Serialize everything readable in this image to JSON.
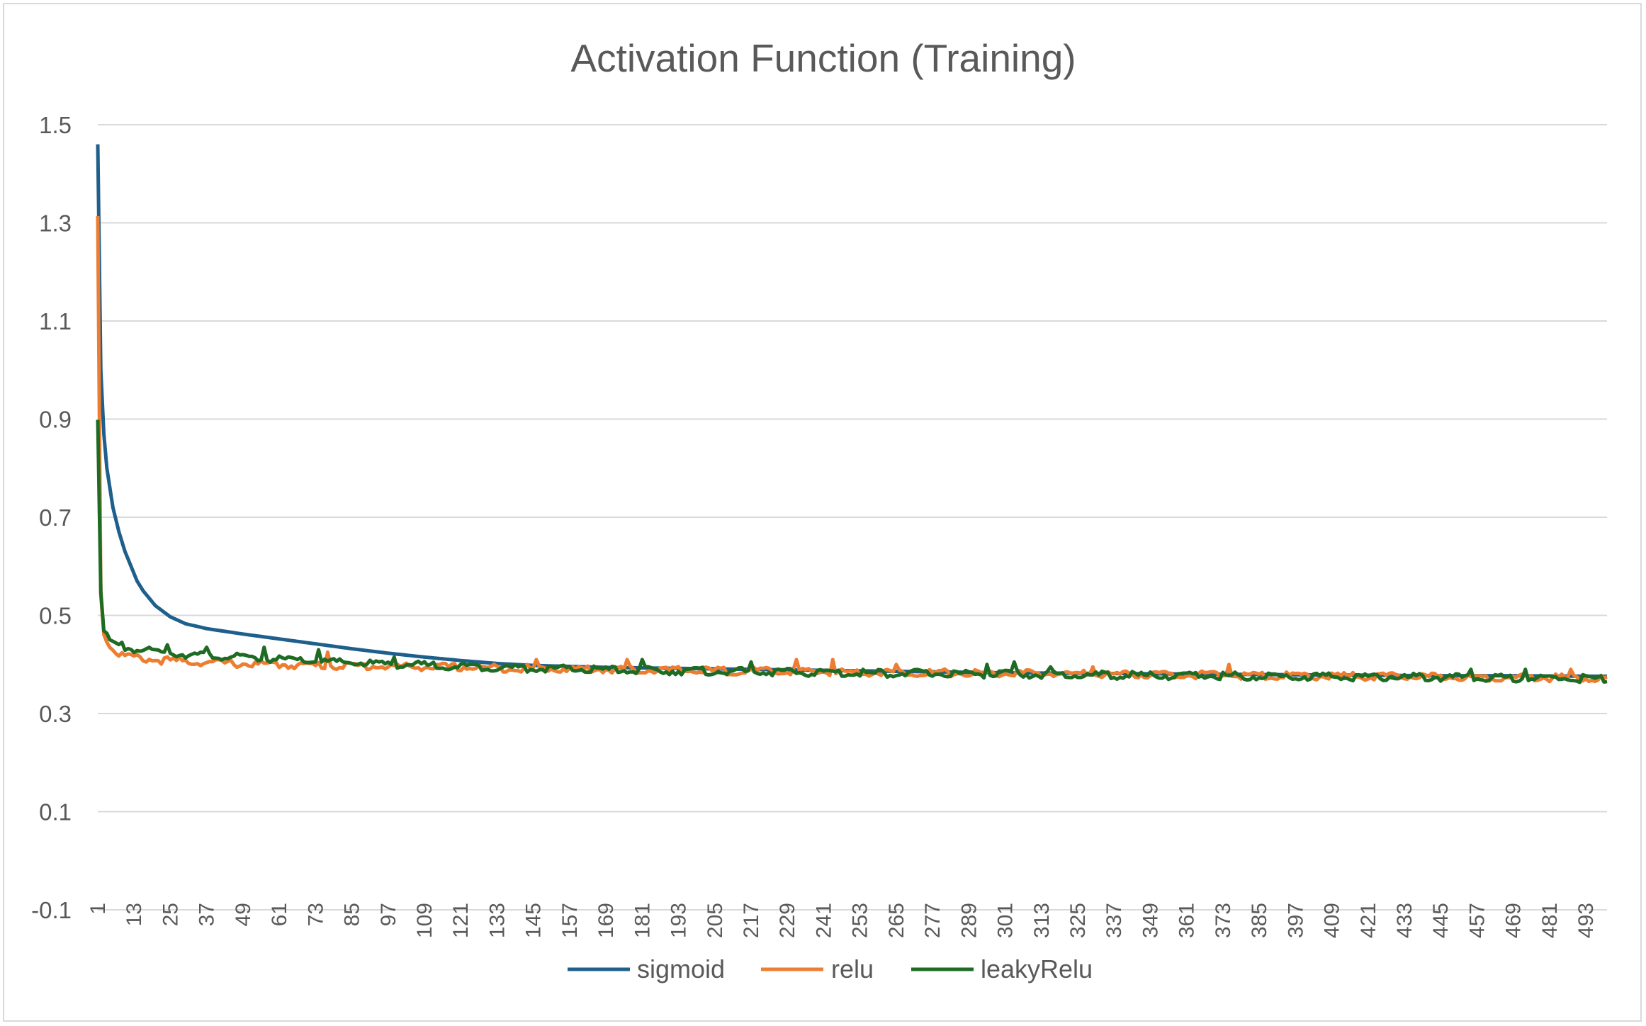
{
  "chart_data": {
    "type": "line",
    "title": "Activation Function (Training)",
    "xlabel": "",
    "ylabel": "",
    "ylim": [
      -0.1,
      1.5
    ],
    "y_ticks": [
      "1.5",
      "1.3",
      "1.1",
      "0.9",
      "0.7",
      "0.5",
      "0.3",
      "0.1",
      "-0.1"
    ],
    "y_tick_values": [
      1.5,
      1.3,
      1.1,
      0.9,
      0.7,
      0.5,
      0.3,
      0.1,
      -0.1
    ],
    "x_range": [
      1,
      500
    ],
    "x_tick_labels": [
      "1",
      "13",
      "25",
      "37",
      "49",
      "61",
      "73",
      "85",
      "97",
      "109",
      "121",
      "133",
      "145",
      "157",
      "169",
      "181",
      "193",
      "205",
      "217",
      "229",
      "241",
      "253",
      "265",
      "277",
      "289",
      "301",
      "313",
      "325",
      "337",
      "349",
      "361",
      "373",
      "385",
      "397",
      "409",
      "421",
      "433",
      "445",
      "457",
      "469",
      "481",
      "493"
    ],
    "grid": "horizontal",
    "legend_position": "bottom",
    "series": [
      {
        "name": "sigmoid",
        "color": "#1f5f8b",
        "points": [
          [
            1,
            1.46
          ],
          [
            2,
            1.0
          ],
          [
            3,
            0.87
          ],
          [
            4,
            0.8
          ],
          [
            5,
            0.76
          ],
          [
            6,
            0.72
          ],
          [
            8,
            0.67
          ],
          [
            10,
            0.63
          ],
          [
            12,
            0.6
          ],
          [
            14,
            0.57
          ],
          [
            16,
            0.55
          ],
          [
            18,
            0.535
          ],
          [
            20,
            0.52
          ],
          [
            25,
            0.497
          ],
          [
            30,
            0.483
          ],
          [
            37,
            0.473
          ],
          [
            49,
            0.462
          ],
          [
            61,
            0.452
          ],
          [
            73,
            0.442
          ],
          [
            85,
            0.432
          ],
          [
            97,
            0.423
          ],
          [
            109,
            0.415
          ],
          [
            121,
            0.408
          ],
          [
            133,
            0.402
          ],
          [
            145,
            0.398
          ],
          [
            157,
            0.396
          ],
          [
            169,
            0.394
          ],
          [
            181,
            0.393
          ],
          [
            193,
            0.392
          ],
          [
            205,
            0.391
          ],
          [
            229,
            0.389
          ],
          [
            253,
            0.387
          ],
          [
            277,
            0.385
          ],
          [
            301,
            0.383
          ],
          [
            325,
            0.382
          ],
          [
            349,
            0.381
          ],
          [
            373,
            0.38
          ],
          [
            397,
            0.379
          ],
          [
            421,
            0.378
          ],
          [
            445,
            0.377
          ],
          [
            469,
            0.377
          ],
          [
            493,
            0.376
          ],
          [
            500,
            0.376
          ]
        ]
      },
      {
        "name": "relu",
        "color": "#ed7d31",
        "points": [
          [
            1,
            1.32
          ],
          [
            2,
            0.55
          ],
          [
            3,
            0.47
          ],
          [
            5,
            0.44
          ],
          [
            8,
            0.425
          ],
          [
            13,
            0.418
          ],
          [
            20,
            0.413
          ],
          [
            30,
            0.41
          ],
          [
            49,
            0.405
          ],
          [
            73,
            0.402
          ],
          [
            97,
            0.4
          ],
          [
            121,
            0.398
          ],
          [
            145,
            0.396
          ],
          [
            169,
            0.394
          ],
          [
            193,
            0.392
          ],
          [
            217,
            0.39
          ],
          [
            241,
            0.389
          ],
          [
            265,
            0.388
          ],
          [
            289,
            0.386
          ],
          [
            313,
            0.385
          ],
          [
            337,
            0.384
          ],
          [
            361,
            0.383
          ],
          [
            385,
            0.381
          ],
          [
            409,
            0.38
          ],
          [
            433,
            0.379
          ],
          [
            457,
            0.378
          ],
          [
            481,
            0.377
          ],
          [
            500,
            0.376
          ]
        ],
        "spikes": [
          [
            77,
            0.425
          ],
          [
            146,
            0.41
          ],
          [
            176,
            0.41
          ],
          [
            232,
            0.41
          ],
          [
            244,
            0.41
          ],
          [
            265,
            0.4
          ],
          [
            330,
            0.395
          ],
          [
            375,
            0.4
          ],
          [
            488,
            0.39
          ]
        ]
      },
      {
        "name": "leakyRelu",
        "color": "#1e6b23",
        "points": [
          [
            1,
            0.91
          ],
          [
            2,
            0.55
          ],
          [
            3,
            0.47
          ],
          [
            5,
            0.45
          ],
          [
            8,
            0.44
          ],
          [
            13,
            0.435
          ],
          [
            20,
            0.43
          ],
          [
            30,
            0.425
          ],
          [
            49,
            0.418
          ],
          [
            73,
            0.41
          ],
          [
            97,
            0.405
          ],
          [
            121,
            0.4
          ],
          [
            145,
            0.396
          ],
          [
            169,
            0.393
          ],
          [
            193,
            0.391
          ],
          [
            217,
            0.389
          ],
          [
            241,
            0.387
          ],
          [
            265,
            0.386
          ],
          [
            289,
            0.385
          ],
          [
            313,
            0.383
          ],
          [
            337,
            0.382
          ],
          [
            361,
            0.381
          ],
          [
            385,
            0.38
          ],
          [
            409,
            0.379
          ],
          [
            433,
            0.378
          ],
          [
            457,
            0.377
          ],
          [
            481,
            0.376
          ],
          [
            500,
            0.375
          ]
        ],
        "spikes": [
          [
            9,
            0.445
          ],
          [
            24,
            0.44
          ],
          [
            37,
            0.435
          ],
          [
            56,
            0.435
          ],
          [
            74,
            0.43
          ],
          [
            99,
            0.415
          ],
          [
            181,
            0.41
          ],
          [
            217,
            0.405
          ],
          [
            295,
            0.4
          ],
          [
            304,
            0.405
          ],
          [
            316,
            0.395
          ],
          [
            455,
            0.39
          ],
          [
            473,
            0.39
          ]
        ]
      }
    ]
  }
}
